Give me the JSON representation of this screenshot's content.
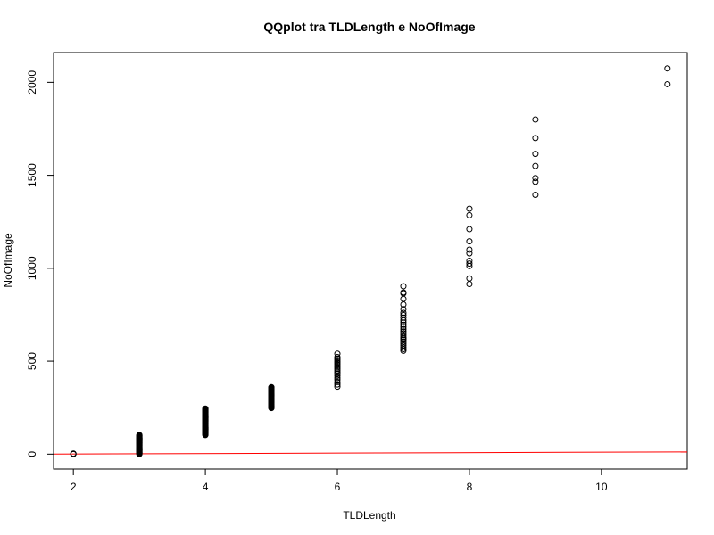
{
  "chart_data": {
    "type": "scatter",
    "title": "QQplot tra TLDLength e NoOfImage",
    "xlabel": "TLDLength",
    "ylabel": "NoOfImage",
    "xlim": [
      1.7,
      11.3
    ],
    "ylim": [
      -80,
      2160
    ],
    "x_ticks": [
      2,
      4,
      6,
      8,
      10
    ],
    "y_ticks": [
      0,
      500,
      1000,
      1500,
      2000
    ],
    "grid": false,
    "legend": "none",
    "point_color": "#000000",
    "line_color": "#ff0000",
    "reference_line": {
      "x": [
        1.7,
        11.3
      ],
      "y": [
        0.3,
        12
      ]
    },
    "clusters": [
      {
        "x": 2,
        "ymin": 0,
        "ymax": 3,
        "dense": true
      },
      {
        "x": 3,
        "ymin": 0,
        "ymax": 103,
        "dense": true
      },
      {
        "x": 4,
        "ymin": 103,
        "ymax": 245,
        "dense": true
      },
      {
        "x": 5,
        "ymin": 248,
        "ymax": 360,
        "dense": true
      },
      {
        "x": 6,
        "values": [
          363,
          375,
          388,
          400,
          410,
          422,
          432,
          440,
          450,
          458,
          466,
          474,
          482,
          490,
          498,
          506,
          514,
          522,
          540
        ]
      },
      {
        "x": 7,
        "values": [
          556,
          565,
          575,
          585,
          595,
          605,
          615,
          622,
          630,
          640,
          650,
          660,
          672,
          684,
          696,
          708,
          720,
          734,
          748,
          760,
          780,
          805,
          835,
          865,
          870,
          903
        ]
      },
      {
        "x": 8,
        "values": [
          915,
          945,
          1012,
          1025,
          1040,
          1080,
          1100,
          1145,
          1210,
          1285,
          1320
        ]
      },
      {
        "x": 9,
        "values": [
          1395,
          1465,
          1485,
          1550,
          1615,
          1700,
          1800
        ]
      },
      {
        "x": 11,
        "values": [
          1990,
          2075
        ]
      }
    ]
  }
}
